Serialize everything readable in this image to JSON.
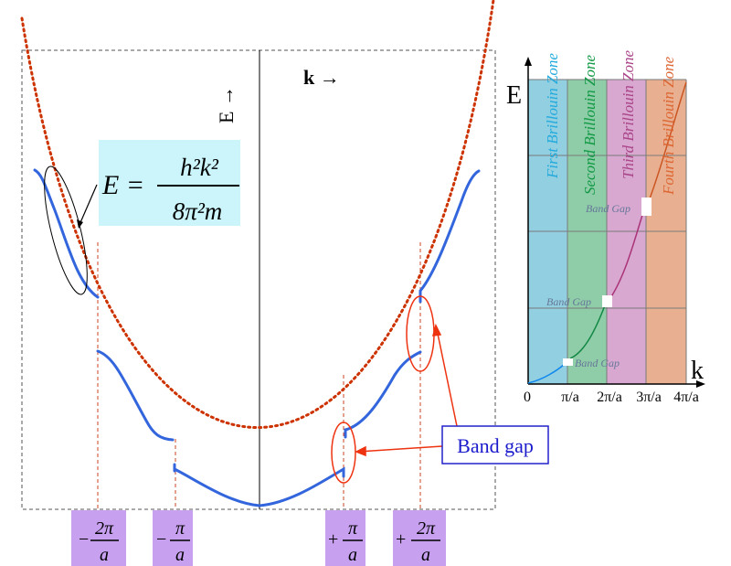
{
  "main_diagram": {
    "energy_axis_label": "E →",
    "k_axis_label": "k →",
    "formula": {
      "lhs": "E =",
      "numerator": "h²k²",
      "denominator": "8π²m"
    },
    "band_gap_callout": "Band gap",
    "tick_labels": [
      {
        "sign": "−",
        "num": "2π",
        "den": "a"
      },
      {
        "sign": "−",
        "num": "π",
        "den": "a"
      },
      {
        "sign": "+",
        "num": "π",
        "den": "a"
      },
      {
        "sign": "+",
        "num": "2π",
        "den": "a"
      }
    ],
    "colors": {
      "band": "#3366dd",
      "free_electron": "#cc3300",
      "annotation": "#ee3311",
      "formula_bg": "#ccf5fb",
      "tick_bg": "#c8a0f0"
    }
  },
  "inset": {
    "y_label": "E",
    "x_label": "k",
    "x_ticks": [
      "0",
      "π/a",
      "2π/a",
      "3π/a",
      "4π/a"
    ],
    "zones": [
      {
        "label": "First Brillouin Zone",
        "fill": "#92cfe0",
        "text_color": "#22aadd"
      },
      {
        "label": "Second Brillouin Zone",
        "fill": "#8fcca8",
        "text_color": "#119944"
      },
      {
        "label": "Third Brillouin Zone",
        "fill": "#d8a8d0",
        "text_color": "#aa4488"
      },
      {
        "label": "Fourth Brillouin Zone",
        "fill": "#e8b090",
        "text_color": "#dd6633"
      }
    ],
    "gap_labels": [
      "Band Gap",
      "Band Gap",
      "Band Gap"
    ]
  }
}
